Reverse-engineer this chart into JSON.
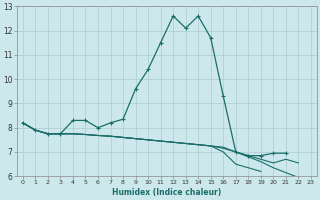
{
  "title": "",
  "xlabel": "Humidex (Indice chaleur)",
  "bg_color": "#cce8ec",
  "grid_color": "#aacccc",
  "line_color": "#1a6e6a",
  "xlim": [
    -0.5,
    23.5
  ],
  "ylim": [
    6,
    13
  ],
  "xticks": [
    0,
    1,
    2,
    3,
    4,
    5,
    6,
    7,
    8,
    9,
    10,
    11,
    12,
    13,
    14,
    15,
    16,
    17,
    18,
    19,
    20,
    21,
    22,
    23
  ],
  "yticks": [
    6,
    7,
    8,
    9,
    10,
    11,
    12,
    13
  ],
  "series1_x": [
    0,
    1,
    2,
    3,
    4,
    5,
    6,
    7,
    8,
    9,
    10,
    11,
    12,
    13,
    14,
    15,
    16,
    17,
    18,
    19,
    20,
    21
  ],
  "series1_y": [
    8.2,
    7.9,
    7.75,
    7.75,
    8.3,
    8.3,
    8.0,
    8.2,
    8.35,
    9.6,
    10.4,
    11.5,
    12.6,
    12.1,
    12.6,
    11.7,
    9.3,
    7.0,
    6.85,
    6.85,
    6.95,
    6.95
  ],
  "series2_x": [
    0,
    1,
    2,
    3,
    4,
    5,
    6,
    7,
    8,
    9,
    10,
    11,
    12,
    13,
    14,
    15,
    16,
    17,
    18,
    19,
    20,
    21,
    22
  ],
  "series2_y": [
    8.2,
    7.9,
    7.75,
    7.75,
    7.75,
    7.72,
    7.68,
    7.65,
    7.6,
    7.55,
    7.5,
    7.45,
    7.4,
    7.35,
    7.3,
    7.25,
    7.2,
    7.0,
    6.85,
    6.7,
    6.55,
    6.7,
    6.55
  ],
  "series3_x": [
    0,
    1,
    2,
    3,
    4,
    5,
    6,
    7,
    8,
    9,
    10,
    11,
    12,
    13,
    14,
    15,
    16,
    17,
    18,
    19,
    20,
    21,
    22,
    23
  ],
  "series3_y": [
    8.2,
    7.9,
    7.75,
    7.75,
    7.75,
    7.72,
    7.68,
    7.65,
    7.6,
    7.55,
    7.5,
    7.45,
    7.4,
    7.35,
    7.3,
    7.25,
    7.15,
    7.0,
    6.8,
    6.6,
    6.35,
    6.15,
    5.95,
    5.7
  ],
  "series4_x": [
    0,
    1,
    2,
    3,
    4,
    5,
    6,
    7,
    8,
    9,
    10,
    11,
    12,
    13,
    14,
    15,
    16,
    17,
    18,
    19
  ],
  "series4_y": [
    8.2,
    7.9,
    7.75,
    7.75,
    7.75,
    7.72,
    7.68,
    7.65,
    7.6,
    7.55,
    7.5,
    7.45,
    7.4,
    7.35,
    7.3,
    7.25,
    7.0,
    6.5,
    6.35,
    6.2
  ]
}
